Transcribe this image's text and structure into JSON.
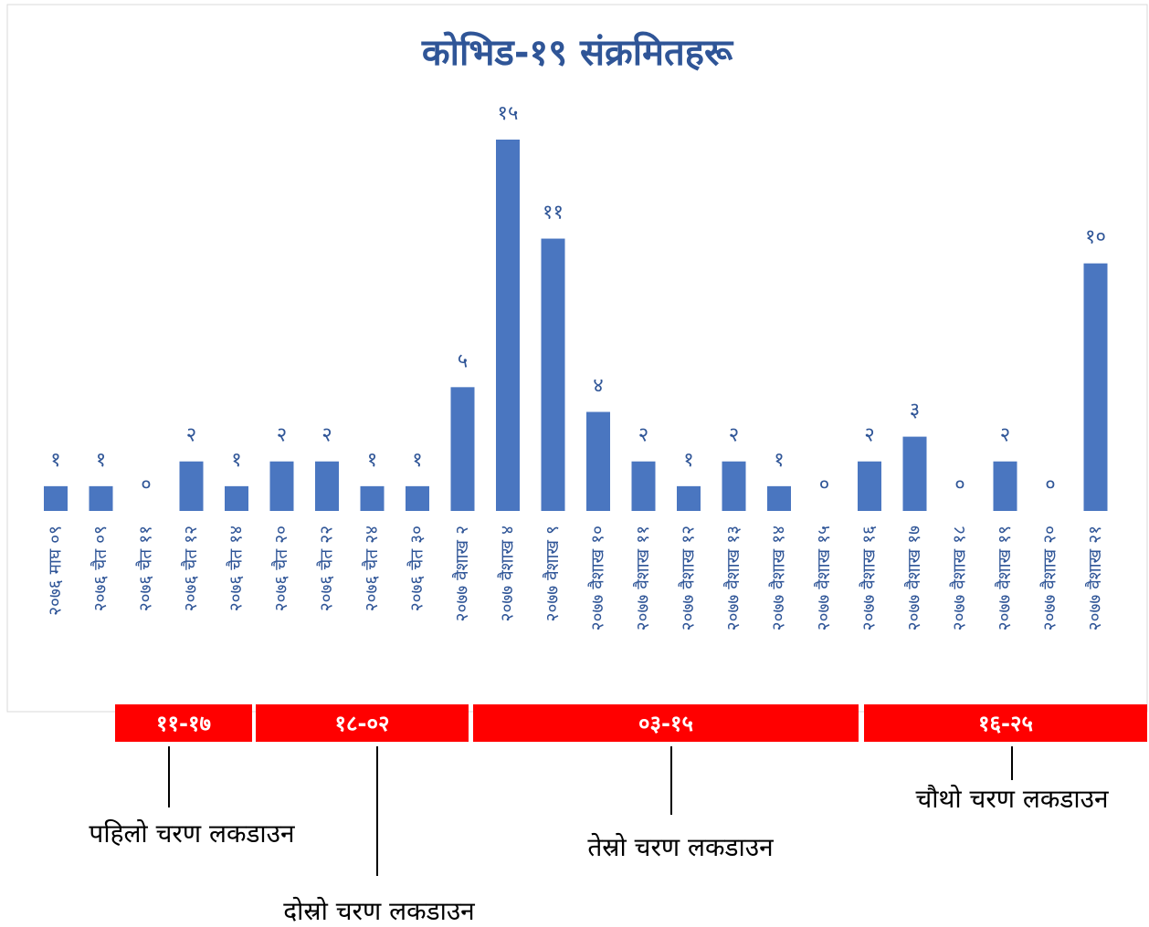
{
  "chart_data": {
    "type": "bar",
    "title": "कोभिड-१९ संक्रमितहरू",
    "categories": [
      "२०७६ माघ ०९",
      "२०७६ चैत ०९",
      "२०७६ चैत ११",
      "२०७६ चैत १२",
      "२०७६ चैत १४",
      "२०७६ चैत २०",
      "२०७६ चैत २२",
      "२०७६ चैत २४",
      "२०७६ चैत ३०",
      "२०७७ वैशाख २",
      "२०७७ वैशाख ४",
      "२०७७ वैशाख ९",
      "२०७७ वैशाख १०",
      "२०७७ वैशाख ११",
      "२०७७ वैशाख १२",
      "२०७७ वैशाख १३",
      "२०७७ वैशाख १४",
      "२०७७ वैशाख १५",
      "२०७७ वैशाख १६",
      "२०७७ वैशाख १७",
      "२०७७ वैशाख १८",
      "२०७७ वैशाख १९",
      "२०७७ वैशाख २०",
      "२०७७ वैशाख २१"
    ],
    "values": [
      1,
      1,
      0,
      2,
      1,
      2,
      2,
      1,
      1,
      5,
      15,
      11,
      4,
      2,
      1,
      2,
      1,
      0,
      2,
      3,
      0,
      2,
      0,
      10
    ],
    "value_labels": [
      "१",
      "१",
      "०",
      "२",
      "१",
      "२",
      "२",
      "१",
      "१",
      "५",
      "१५",
      "११",
      "४",
      "२",
      "१",
      "२",
      "१",
      "०",
      "२",
      "३",
      "०",
      "२",
      "०",
      "१०"
    ],
    "color": "#4a76c0",
    "annotations": [
      {
        "period": "११-१७",
        "label": "पहिलो चरण लकडाउन"
      },
      {
        "period": "१८-०२",
        "label": "दोस्रो चरण लकडाउन"
      },
      {
        "period": "०३-१५",
        "label": "तेस्रो चरण लकडाउन"
      },
      {
        "period": "१६-२५",
        "label": "चौथो चरण लकडाउन"
      }
    ],
    "annotation_color": "#ff0000"
  }
}
